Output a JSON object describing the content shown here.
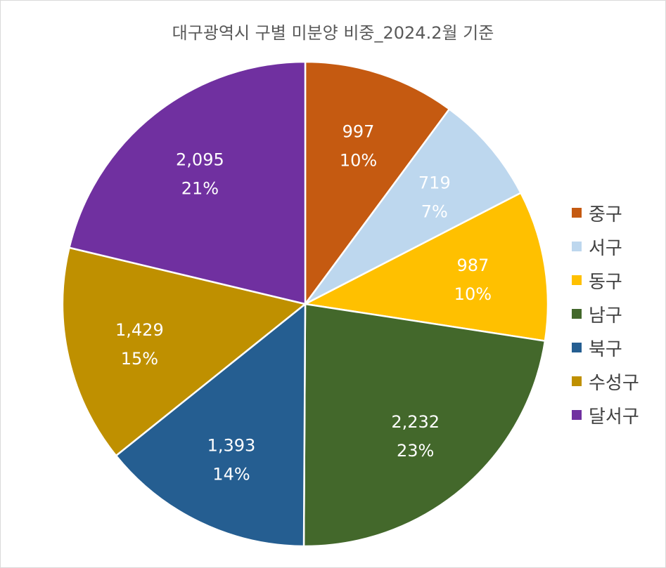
{
  "chart_data": {
    "type": "pie",
    "title": "대구광역시 구별 미분양 비중_2024.2월 기준",
    "categories": [
      "중구",
      "서구",
      "동구",
      "남구",
      "북구",
      "수성구",
      "달서구"
    ],
    "values": [
      997,
      719,
      987,
      2232,
      1393,
      1429,
      2095
    ],
    "value_labels": [
      "997",
      "719",
      "987",
      "2,232",
      "1,393",
      "1,429",
      "2,095"
    ],
    "percent_labels": [
      "10%",
      "7%",
      "10%",
      "23%",
      "14%",
      "15%",
      "21%"
    ],
    "colors": [
      "#C55A11",
      "#BDD7EE",
      "#FFC000",
      "#43682B",
      "#255E91",
      "#BF9000",
      "#7030A0"
    ],
    "label_colors": [
      "#ffffff",
      "#ffffff",
      "#ffffff",
      "#ffffff",
      "#ffffff",
      "#ffffff",
      "#ffffff"
    ],
    "legend_position": "right",
    "start_angle": "12 o'clock",
    "direction": "clockwise"
  }
}
